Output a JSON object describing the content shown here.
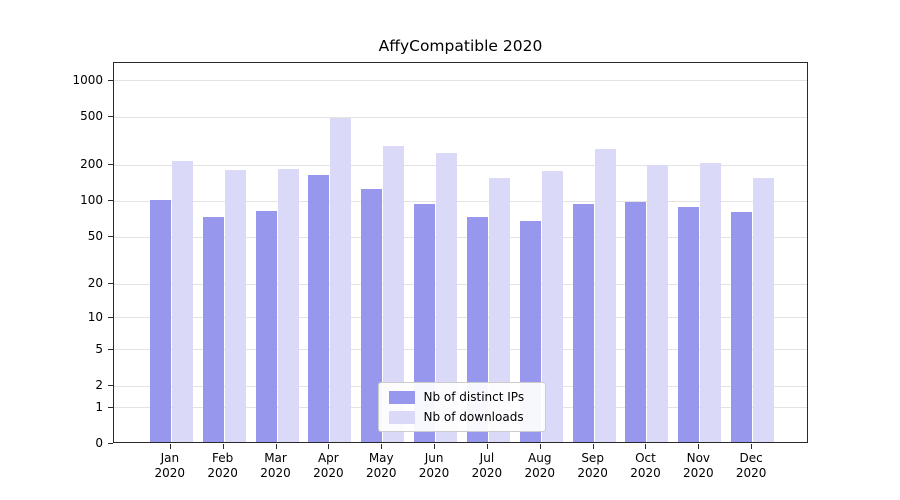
{
  "chart_data": {
    "type": "bar",
    "title": "AffyCompatible 2020",
    "categories": [
      "Jan",
      "Feb",
      "Mar",
      "Apr",
      "May",
      "Jun",
      "Jul",
      "Aug",
      "Sep",
      "Oct",
      "Nov",
      "Dec"
    ],
    "year_label": "2020",
    "series": [
      {
        "name": "Nb of distinct IPs",
        "color": "#9797ed",
        "values": [
          100,
          71,
          80,
          160,
          122,
          91,
          71,
          66,
          91,
          95,
          86,
          78
        ]
      },
      {
        "name": "Nb of downloads",
        "color": "#dadaf8",
        "values": [
          210,
          175,
          178,
          480,
          280,
          245,
          152,
          172,
          265,
          192,
          202,
          152
        ]
      }
    ],
    "y_ticks": [
      0,
      1,
      2,
      5,
      10,
      20,
      50,
      100,
      200,
      500,
      1000
    ],
    "yscale": "log1p",
    "ylim": [
      0,
      1400
    ],
    "grid": "horizontal",
    "legend_position": "lower center",
    "background": "#ffffff"
  }
}
